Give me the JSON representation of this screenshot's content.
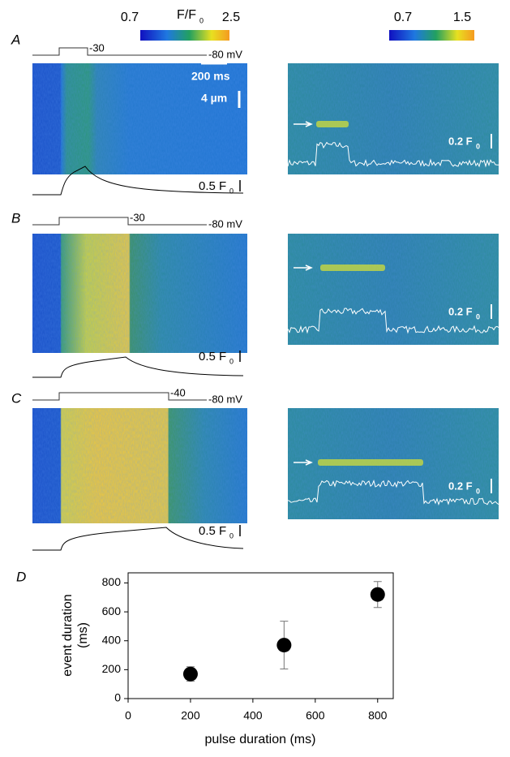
{
  "colorbars": [
    {
      "min": 0.7,
      "max": 2.5,
      "label": "F/F",
      "label_sub": "0"
    },
    {
      "min": 0.7,
      "max": 1.5
    }
  ],
  "scale_bars": {
    "time": "200 ms",
    "space": "4 µm"
  },
  "panels": [
    {
      "letter": "A",
      "step": "-30",
      "hold": "-80 mV",
      "intensity_scale": "0.5 F",
      "intensity_sub": "0",
      "local_scale": "0.2 F",
      "local_sub": "0"
    },
    {
      "letter": "B",
      "step": "-30",
      "hold": "-80 mV",
      "intensity_scale": "0.5 F",
      "intensity_sub": "0",
      "local_scale": "0.2 F",
      "local_sub": "0"
    },
    {
      "letter": "C",
      "step": "-40",
      "hold": "-80 mV",
      "intensity_scale": "0.5 F",
      "intensity_sub": "0",
      "local_scale": "0.2 F",
      "local_sub": "0"
    }
  ],
  "chart_data": {
    "type": "scatter",
    "panel_label": "D",
    "x_label": "pulse duration (ms)",
    "y_label": [
      "event duration",
      "(ms)"
    ],
    "x": [
      200,
      500,
      800
    ],
    "y": [
      170,
      370,
      720
    ],
    "errors": [
      50,
      165,
      90
    ],
    "color": "#000000",
    "xlim": [
      0,
      850
    ],
    "ylim": [
      0,
      870
    ],
    "xticks": [
      0,
      200,
      400,
      600,
      800
    ],
    "yticks": [
      0,
      200,
      400,
      600,
      800
    ]
  }
}
